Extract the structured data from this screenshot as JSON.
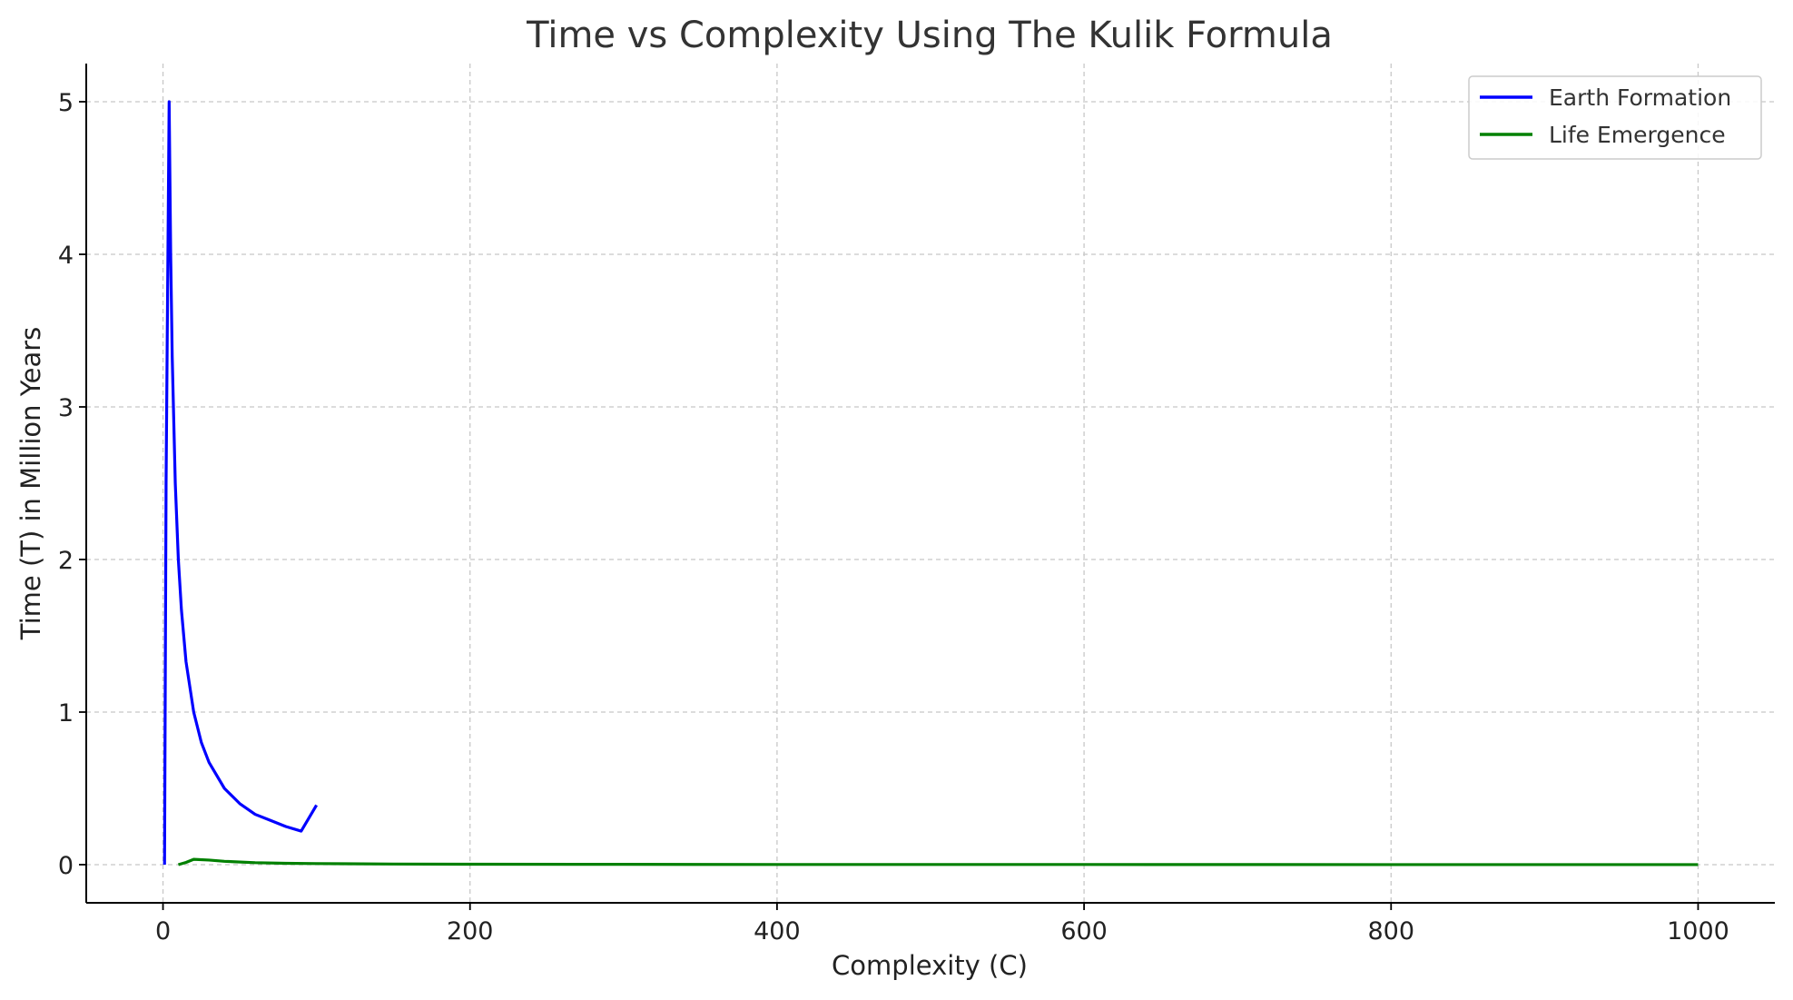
{
  "chart_data": {
    "type": "line",
    "title": "Time vs Complexity Using The Kulik Formula",
    "xlabel": "Complexity (C)",
    "ylabel": "Time (T) in Million Years",
    "xlim": [
      -50,
      1050
    ],
    "ylim": [
      -0.25,
      5.25
    ],
    "xticks": [
      0,
      200,
      400,
      600,
      800,
      1000
    ],
    "yticks": [
      0,
      1,
      2,
      3,
      4,
      5
    ],
    "grid": true,
    "legend_position": "top-right",
    "series": [
      {
        "name": "Earth Formation",
        "color": "#0000ff",
        "x": [
          1,
          2,
          4,
          5,
          6,
          8,
          10,
          12,
          15,
          20,
          25,
          30,
          40,
          50,
          60,
          70,
          80,
          90,
          100
        ],
        "y": [
          0.0,
          2.5,
          5.0,
          4.0,
          3.33,
          2.5,
          2.0,
          1.67,
          1.33,
          1.0,
          0.8,
          0.67,
          0.5,
          0.4,
          0.33,
          0.29,
          0.25,
          0.22,
          0.39
        ]
      },
      {
        "name": "Life Emergence",
        "color": "#008000",
        "x": [
          10,
          15,
          20,
          30,
          40,
          60,
          80,
          100,
          150,
          200,
          300,
          400,
          600,
          800,
          1000
        ],
        "y": [
          0.0,
          0.015,
          0.035,
          0.03,
          0.022,
          0.013,
          0.009,
          0.007,
          0.004,
          0.003,
          0.002,
          0.001,
          0.001,
          0.0005,
          0.0003
        ]
      }
    ]
  }
}
